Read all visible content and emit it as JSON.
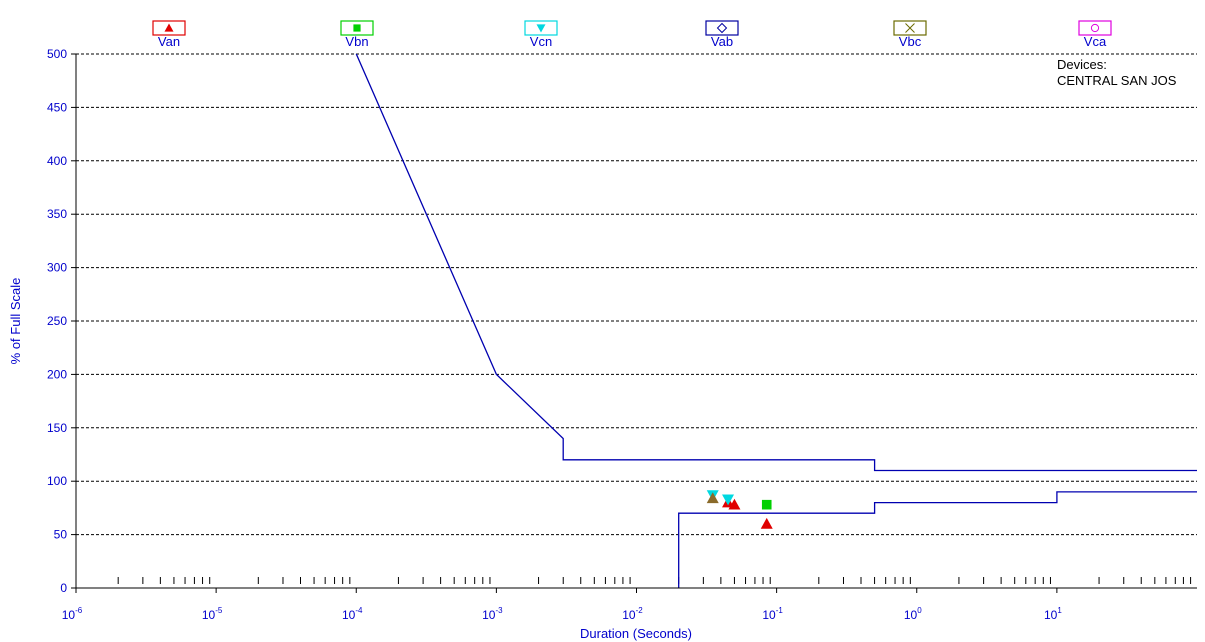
{
  "chart_data": {
    "type": "scatter",
    "xlabel": "Duration (Seconds)",
    "ylabel": "% of Full Scale",
    "xscale": "log",
    "xlim": [
      1e-06,
      100
    ],
    "ylim": [
      0,
      500
    ],
    "yticks": [
      0,
      50,
      100,
      150,
      200,
      250,
      300,
      350,
      400,
      450,
      500
    ],
    "xtick_labels": [
      {
        "base": "10",
        "exp": "-6"
      },
      {
        "base": "10",
        "exp": "-5"
      },
      {
        "base": "10",
        "exp": "-4"
      },
      {
        "base": "10",
        "exp": "-3"
      },
      {
        "base": "10",
        "exp": "-2"
      },
      {
        "base": "10",
        "exp": "-1"
      },
      {
        "base": "10",
        "exp": "0"
      },
      {
        "base": "10",
        "exp": "1"
      }
    ],
    "grid": "horizontal dashed",
    "legend": [
      {
        "label": "Van",
        "color": "#e00000",
        "marker": "triangle-up"
      },
      {
        "label": "Vbn",
        "color": "#00d000",
        "marker": "square"
      },
      {
        "label": "Vcn",
        "color": "#00d8e0",
        "marker": "triangle-down"
      },
      {
        "label": "Vab",
        "color": "#0000a0",
        "marker": "diamond"
      },
      {
        "label": "Vbc",
        "color": "#6b6b00",
        "marker": "x"
      },
      {
        "label": "Vca",
        "color": "#e000e0",
        "marker": "circle"
      }
    ],
    "devices": {
      "heading": "Devices:",
      "name": "CENTRAL SAN JOS"
    },
    "curve_color": "#0000b0",
    "upper_curve": [
      {
        "x": 0.0001,
        "y": 500
      },
      {
        "x": 0.001,
        "y": 200
      },
      {
        "x": 0.003,
        "y": 140
      },
      {
        "x": 0.003,
        "y": 120
      },
      {
        "x": 0.5,
        "y": 120
      },
      {
        "x": 0.5,
        "y": 110
      },
      {
        "x": 100,
        "y": 110
      }
    ],
    "lower_curve": [
      {
        "x": 0.02,
        "y": 0
      },
      {
        "x": 0.02,
        "y": 70
      },
      {
        "x": 0.5,
        "y": 70
      },
      {
        "x": 0.5,
        "y": 80
      },
      {
        "x": 10,
        "y": 80
      },
      {
        "x": 10,
        "y": 90
      },
      {
        "x": 100,
        "y": 90
      }
    ],
    "series": [
      {
        "name": "Van",
        "points": [
          [
            0.045,
            80
          ],
          [
            0.05,
            78
          ],
          [
            0.085,
            60
          ]
        ]
      },
      {
        "name": "Vbn",
        "points": [
          [
            0.085,
            78
          ]
        ]
      },
      {
        "name": "Vcn",
        "points": [
          [
            0.035,
            87
          ],
          [
            0.045,
            83
          ]
        ]
      },
      {
        "name": "Vbc",
        "points": [
          [
            0.035,
            84
          ]
        ]
      }
    ]
  }
}
